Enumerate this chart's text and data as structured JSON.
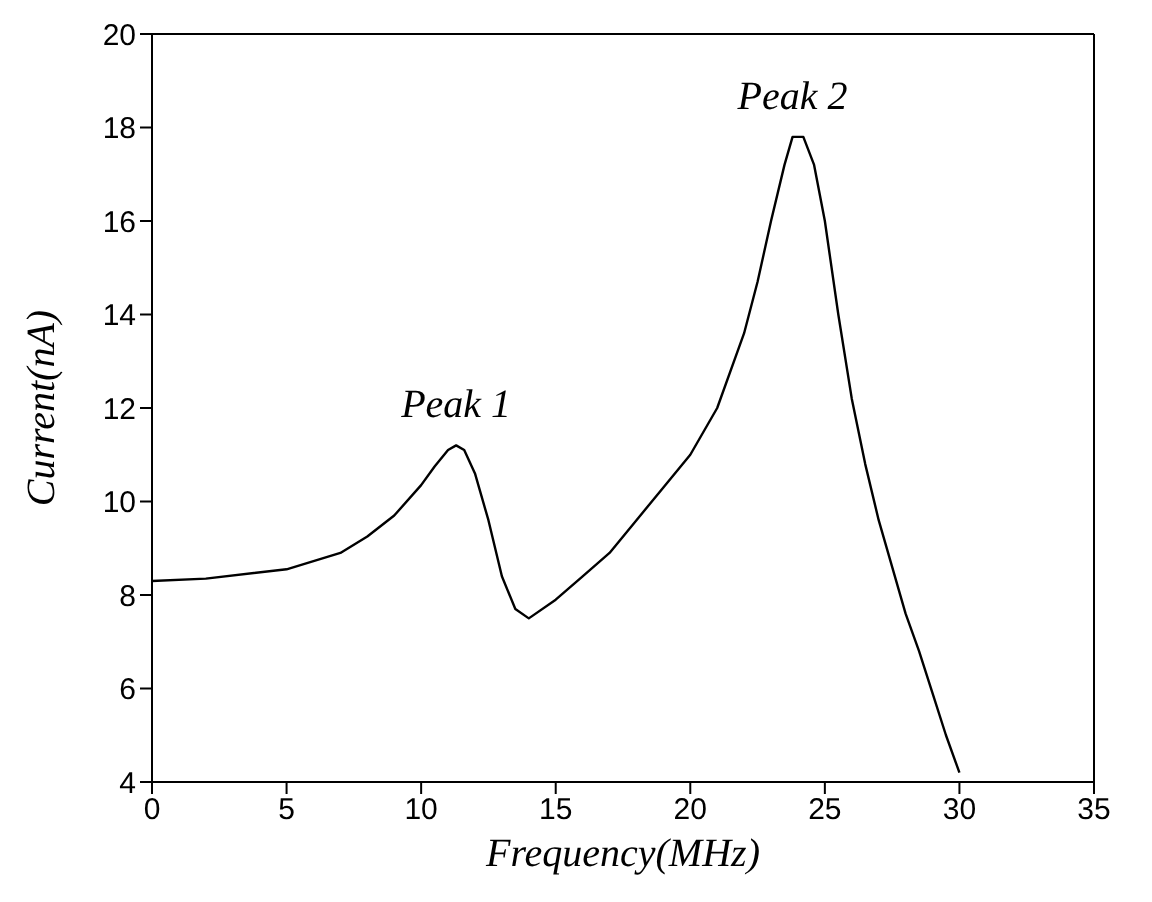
{
  "chart_data": {
    "type": "line",
    "xlabel": "Frequency(MHz)",
    "ylabel": "Current(nA)",
    "x": [
      0,
      2,
      5,
      7,
      8,
      9,
      10,
      10.5,
      11,
      11.3,
      11.6,
      12,
      12.5,
      13,
      13.5,
      14,
      15,
      16,
      17,
      18,
      19,
      20,
      21,
      22,
      22.5,
      23,
      23.5,
      23.8,
      24.2,
      24.6,
      25,
      25.5,
      26,
      26.5,
      27,
      27.5,
      28,
      28.5,
      29,
      29.5,
      30
    ],
    "series": [
      {
        "color": "#000000",
        "values": [
          8.3,
          8.35,
          8.55,
          8.9,
          9.25,
          9.7,
          10.35,
          10.75,
          11.1,
          11.2,
          11.1,
          10.6,
          9.6,
          8.4,
          7.7,
          7.5,
          7.9,
          8.4,
          8.9,
          9.6,
          10.3,
          11.0,
          12.0,
          13.6,
          14.7,
          16.0,
          17.2,
          17.8,
          17.8,
          17.2,
          16.0,
          14.0,
          12.2,
          10.8,
          9.6,
          8.6,
          7.6,
          6.8,
          5.9,
          5.0,
          4.2
        ]
      }
    ],
    "xlim": [
      0,
      35
    ],
    "xticks": [
      0,
      5,
      10,
      15,
      20,
      25,
      30,
      35
    ],
    "ylim": [
      4,
      20
    ],
    "yticks": [
      4,
      6,
      8,
      10,
      12,
      14,
      16,
      18,
      20
    ],
    "grid": false,
    "legend": false,
    "marker": "none",
    "line_style": "solid",
    "annotations": [
      {
        "text": "Peak 1",
        "x": 11.3,
        "y": 11.2
      },
      {
        "text": "Peak 2",
        "x": 23.8,
        "y": 17.8
      }
    ]
  }
}
